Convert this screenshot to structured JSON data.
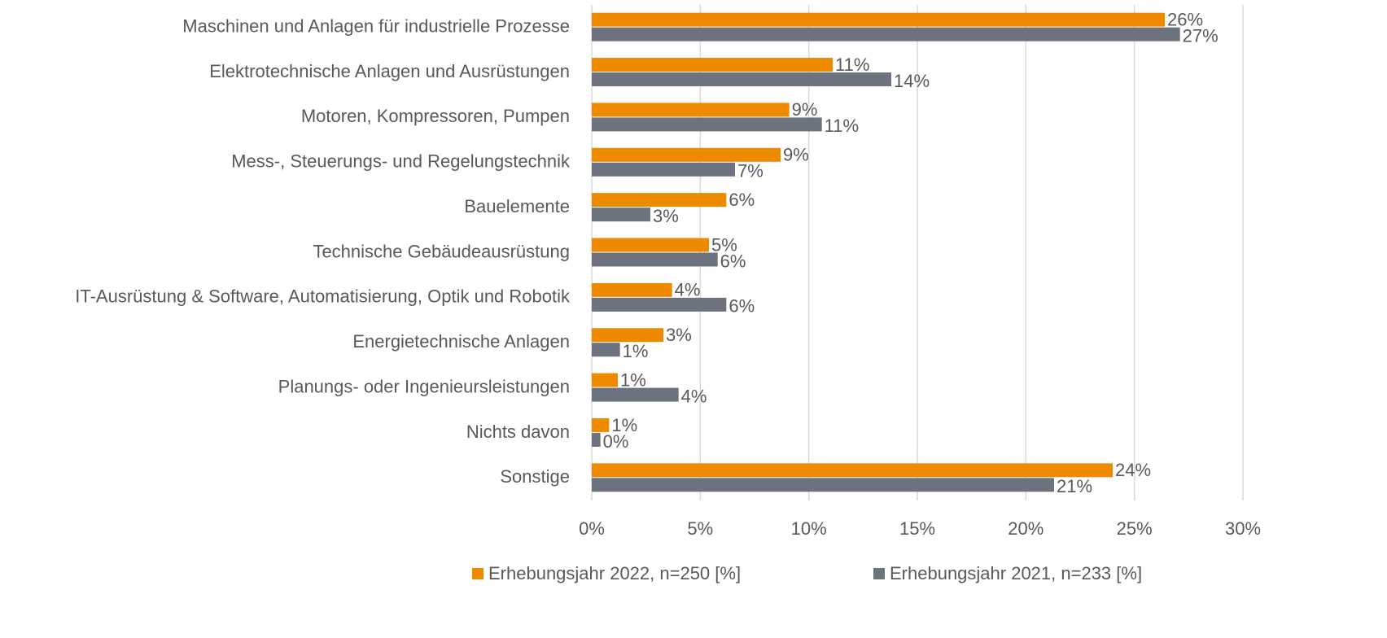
{
  "chart_data": {
    "type": "hbar",
    "categories": [
      "Maschinen und Anlagen für industrielle Prozesse",
      "Elektrotechnische Anlagen und Ausrüstungen",
      "Motoren, Kompressoren, Pumpen",
      "Mess-, Steuerungs- und Regelungstechnik",
      "Bauelemente",
      "Technische Gebäudeausrüstung",
      "IT-Ausrüstung & Software, Automatisierung, Optik und Robotik",
      "Energietechnische Anlagen",
      "Planungs- oder Ingenieursleistungen",
      "Nichts davon",
      "Sonstige"
    ],
    "series": [
      {
        "name": "Erhebungsjahr 2022, n=250 [%]",
        "color": "#ee8a00",
        "values": [
          26.4,
          11.1,
          9.1,
          8.7,
          6.2,
          5.4,
          3.7,
          3.3,
          1.2,
          0.8,
          24.0
        ],
        "value_labels": [
          "26%",
          "11%",
          "9%",
          "9%",
          "6%",
          "5%",
          "4%",
          "3%",
          "1%",
          "1%",
          "24%"
        ]
      },
      {
        "name": "Erhebungsjahr 2021, n=233 [%]",
        "color": "#6c737e",
        "values": [
          27.1,
          13.8,
          10.6,
          6.6,
          2.7,
          5.8,
          6.2,
          1.3,
          4.0,
          0.4,
          21.3
        ],
        "value_labels": [
          "27%",
          "14%",
          "11%",
          "7%",
          "3%",
          "6%",
          "6%",
          "1%",
          "4%",
          "0%",
          "21%"
        ]
      }
    ],
    "xlim": [
      0,
      30
    ],
    "xticks": [
      {
        "value": 0,
        "label": "0%"
      },
      {
        "value": 5,
        "label": "5%"
      },
      {
        "value": 10,
        "label": "10%"
      },
      {
        "value": 15,
        "label": "15%"
      },
      {
        "value": 20,
        "label": "20%"
      },
      {
        "value": 25,
        "label": "25%"
      },
      {
        "value": 30,
        "label": "30%"
      }
    ],
    "grid": true,
    "legend": "bottom"
  }
}
